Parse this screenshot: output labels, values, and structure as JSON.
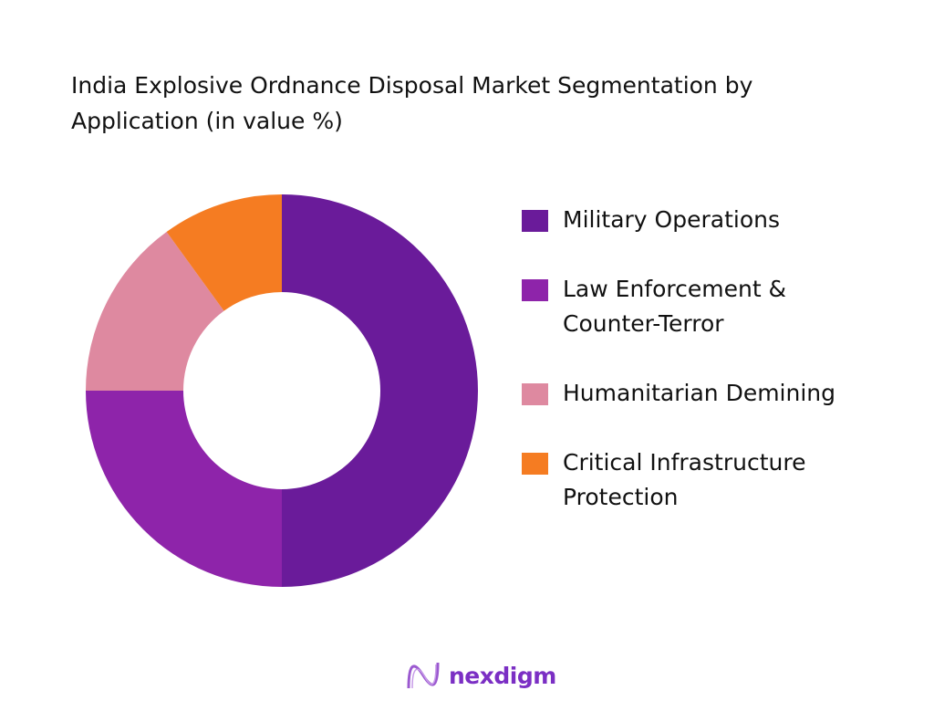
{
  "chart_data": {
    "type": "pie",
    "variant": "donut",
    "title": "India Explosive Ordnance Disposal Market Segmentation by Application (in value %)",
    "categories": [
      "Military Operations",
      "Law Enforcement & Counter-Terror",
      "Humanitarian Demining",
      "Critical Infrastructure Protection"
    ],
    "values": [
      50,
      25,
      15,
      10
    ],
    "colors": [
      "#6a1b9a",
      "#8e24aa",
      "#de89a0",
      "#f57c22"
    ],
    "legend_position": "right"
  },
  "legend_lines": [
    [
      "Military Operations"
    ],
    [
      "Law Enforcement &",
      "Counter-Terror"
    ],
    [
      "Humanitarian Demining"
    ],
    [
      "Critical Infrastructure",
      "Protection"
    ]
  ],
  "logo": {
    "text": "nexdigm",
    "color": "#7b2fc4"
  }
}
